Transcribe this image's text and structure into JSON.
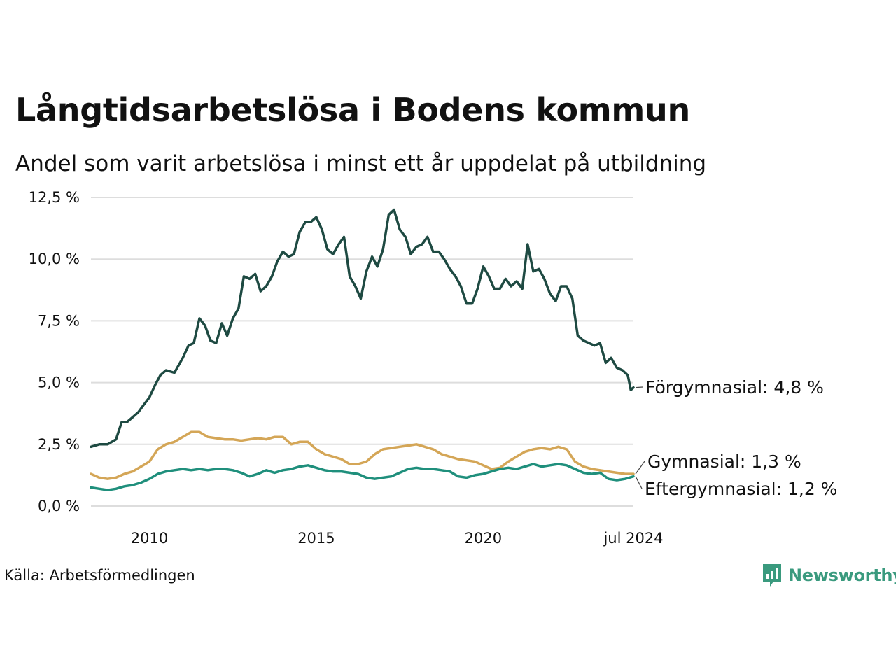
{
  "header": {
    "title": "Långtidsarbetslösa i Bodens kommun",
    "subtitle": "Andel som varit arbetslösa i minst ett år uppdelat på utbildning"
  },
  "footer": {
    "source": "Källa: Arbetsförmedlingen",
    "logo_text": "Newsworthy"
  },
  "colors": {
    "forgymnasial": "#1e4a42",
    "gymnasial": "#d4a657",
    "eftergymnasial": "#1f8f7c",
    "grid": "#dddddd",
    "logo": "#3a9a7e"
  },
  "chart_data": {
    "type": "line",
    "title": "Långtidsarbetslösa i Bodens kommun",
    "subtitle": "Andel som varit arbetslösa i minst ett år uppdelat på utbildning",
    "xlabel": "",
    "ylabel": "",
    "ylim": [
      0,
      12.5
    ],
    "xlim": [
      2008.25,
      2024.5
    ],
    "y_ticks": [
      0,
      2.5,
      5,
      7.5,
      10,
      12.5
    ],
    "y_tick_labels": [
      "0,0 %",
      "2,5 %",
      "5,0 %",
      "7,5 %",
      "10,0 %",
      "12,5 %"
    ],
    "x_ticks": [
      2010,
      2015,
      2020,
      2024.5
    ],
    "x_tick_labels": [
      "2010",
      "2015",
      "2020",
      "jul 2024"
    ],
    "grid": true,
    "series": [
      {
        "name": "Förgymnasial",
        "end_label": "Förgymnasial: 4,8 %",
        "color_key": "forgymnasial",
        "points": [
          [
            2008.25,
            2.4
          ],
          [
            2008.5,
            2.5
          ],
          [
            2008.75,
            2.5
          ],
          [
            2009,
            2.7
          ],
          [
            2009.17,
            3.4
          ],
          [
            2009.33,
            3.4
          ],
          [
            2009.5,
            3.6
          ],
          [
            2009.67,
            3.8
          ],
          [
            2009.83,
            4.1
          ],
          [
            2010,
            4.4
          ],
          [
            2010.17,
            4.9
          ],
          [
            2010.33,
            5.3
          ],
          [
            2010.5,
            5.5
          ],
          [
            2010.75,
            5.4
          ],
          [
            2011,
            6.0
          ],
          [
            2011.17,
            6.5
          ],
          [
            2011.33,
            6.6
          ],
          [
            2011.5,
            7.6
          ],
          [
            2011.67,
            7.3
          ],
          [
            2011.83,
            6.7
          ],
          [
            2012,
            6.6
          ],
          [
            2012.17,
            7.4
          ],
          [
            2012.33,
            6.9
          ],
          [
            2012.5,
            7.6
          ],
          [
            2012.67,
            8.0
          ],
          [
            2012.83,
            9.3
          ],
          [
            2013,
            9.2
          ],
          [
            2013.17,
            9.4
          ],
          [
            2013.33,
            8.7
          ],
          [
            2013.5,
            8.9
          ],
          [
            2013.67,
            9.3
          ],
          [
            2013.83,
            9.9
          ],
          [
            2014,
            10.3
          ],
          [
            2014.17,
            10.1
          ],
          [
            2014.33,
            10.2
          ],
          [
            2014.5,
            11.1
          ],
          [
            2014.67,
            11.5
          ],
          [
            2014.83,
            11.5
          ],
          [
            2015,
            11.7
          ],
          [
            2015.17,
            11.2
          ],
          [
            2015.33,
            10.4
          ],
          [
            2015.5,
            10.2
          ],
          [
            2015.67,
            10.6
          ],
          [
            2015.83,
            10.9
          ],
          [
            2016,
            9.3
          ],
          [
            2016.17,
            8.9
          ],
          [
            2016.33,
            8.4
          ],
          [
            2016.5,
            9.5
          ],
          [
            2016.67,
            10.1
          ],
          [
            2016.83,
            9.7
          ],
          [
            2017,
            10.4
          ],
          [
            2017.17,
            11.8
          ],
          [
            2017.33,
            12.0
          ],
          [
            2017.5,
            11.2
          ],
          [
            2017.67,
            10.9
          ],
          [
            2017.83,
            10.2
          ],
          [
            2018,
            10.5
          ],
          [
            2018.17,
            10.6
          ],
          [
            2018.33,
            10.9
          ],
          [
            2018.5,
            10.3
          ],
          [
            2018.67,
            10.3
          ],
          [
            2018.83,
            10.0
          ],
          [
            2019,
            9.6
          ],
          [
            2019.17,
            9.3
          ],
          [
            2019.33,
            8.9
          ],
          [
            2019.5,
            8.2
          ],
          [
            2019.67,
            8.2
          ],
          [
            2019.83,
            8.8
          ],
          [
            2020,
            9.7
          ],
          [
            2020.17,
            9.3
          ],
          [
            2020.33,
            8.8
          ],
          [
            2020.5,
            8.8
          ],
          [
            2020.67,
            9.2
          ],
          [
            2020.83,
            8.9
          ],
          [
            2021,
            9.1
          ],
          [
            2021.17,
            8.8
          ],
          [
            2021.33,
            10.6
          ],
          [
            2021.5,
            9.5
          ],
          [
            2021.67,
            9.6
          ],
          [
            2021.83,
            9.2
          ],
          [
            2022,
            8.6
          ],
          [
            2022.17,
            8.3
          ],
          [
            2022.33,
            8.9
          ],
          [
            2022.5,
            8.9
          ],
          [
            2022.67,
            8.4
          ],
          [
            2022.83,
            6.9
          ],
          [
            2023,
            6.7
          ],
          [
            2023.17,
            6.6
          ],
          [
            2023.33,
            6.5
          ],
          [
            2023.5,
            6.6
          ],
          [
            2023.67,
            5.8
          ],
          [
            2023.83,
            6.0
          ],
          [
            2024,
            5.6
          ],
          [
            2024.17,
            5.5
          ],
          [
            2024.33,
            5.3
          ],
          [
            2024.42,
            4.7
          ],
          [
            2024.5,
            4.8
          ]
        ]
      },
      {
        "name": "Gymnasial",
        "end_label": "Gymnasial: 1,3 %",
        "color_key": "gymnasial",
        "points": [
          [
            2008.25,
            1.3
          ],
          [
            2008.5,
            1.15
          ],
          [
            2008.75,
            1.1
          ],
          [
            2009,
            1.15
          ],
          [
            2009.25,
            1.3
          ],
          [
            2009.5,
            1.4
          ],
          [
            2009.75,
            1.6
          ],
          [
            2010,
            1.8
          ],
          [
            2010.25,
            2.3
          ],
          [
            2010.5,
            2.5
          ],
          [
            2010.75,
            2.6
          ],
          [
            2011,
            2.8
          ],
          [
            2011.25,
            3.0
          ],
          [
            2011.5,
            3.0
          ],
          [
            2011.75,
            2.8
          ],
          [
            2012,
            2.75
          ],
          [
            2012.25,
            2.7
          ],
          [
            2012.5,
            2.7
          ],
          [
            2012.75,
            2.65
          ],
          [
            2013,
            2.7
          ],
          [
            2013.25,
            2.75
          ],
          [
            2013.5,
            2.7
          ],
          [
            2013.75,
            2.8
          ],
          [
            2014,
            2.8
          ],
          [
            2014.25,
            2.5
          ],
          [
            2014.5,
            2.6
          ],
          [
            2014.75,
            2.6
          ],
          [
            2015,
            2.3
          ],
          [
            2015.25,
            2.1
          ],
          [
            2015.5,
            2.0
          ],
          [
            2015.75,
            1.9
          ],
          [
            2016,
            1.7
          ],
          [
            2016.25,
            1.7
          ],
          [
            2016.5,
            1.8
          ],
          [
            2016.75,
            2.1
          ],
          [
            2017,
            2.3
          ],
          [
            2017.25,
            2.35
          ],
          [
            2017.5,
            2.4
          ],
          [
            2017.75,
            2.45
          ],
          [
            2018,
            2.5
          ],
          [
            2018.25,
            2.4
          ],
          [
            2018.5,
            2.3
          ],
          [
            2018.75,
            2.1
          ],
          [
            2019,
            2.0
          ],
          [
            2019.25,
            1.9
          ],
          [
            2019.5,
            1.85
          ],
          [
            2019.75,
            1.8
          ],
          [
            2020,
            1.65
          ],
          [
            2020.25,
            1.5
          ],
          [
            2020.5,
            1.55
          ],
          [
            2020.75,
            1.8
          ],
          [
            2021,
            2.0
          ],
          [
            2021.25,
            2.2
          ],
          [
            2021.5,
            2.3
          ],
          [
            2021.75,
            2.35
          ],
          [
            2022,
            2.3
          ],
          [
            2022.25,
            2.4
          ],
          [
            2022.5,
            2.3
          ],
          [
            2022.75,
            1.8
          ],
          [
            2023,
            1.6
          ],
          [
            2023.25,
            1.5
          ],
          [
            2023.5,
            1.45
          ],
          [
            2023.75,
            1.4
          ],
          [
            2024,
            1.35
          ],
          [
            2024.25,
            1.3
          ],
          [
            2024.5,
            1.3
          ]
        ]
      },
      {
        "name": "Eftergymnasial",
        "end_label": "Eftergymnasial: 1,2 %",
        "color_key": "eftergymnasial",
        "points": [
          [
            2008.25,
            0.75
          ],
          [
            2008.5,
            0.7
          ],
          [
            2008.75,
            0.65
          ],
          [
            2009,
            0.7
          ],
          [
            2009.25,
            0.8
          ],
          [
            2009.5,
            0.85
          ],
          [
            2009.75,
            0.95
          ],
          [
            2010,
            1.1
          ],
          [
            2010.25,
            1.3
          ],
          [
            2010.5,
            1.4
          ],
          [
            2010.75,
            1.45
          ],
          [
            2011,
            1.5
          ],
          [
            2011.25,
            1.45
          ],
          [
            2011.5,
            1.5
          ],
          [
            2011.75,
            1.45
          ],
          [
            2012,
            1.5
          ],
          [
            2012.25,
            1.5
          ],
          [
            2012.5,
            1.45
          ],
          [
            2012.75,
            1.35
          ],
          [
            2013,
            1.2
          ],
          [
            2013.25,
            1.3
          ],
          [
            2013.5,
            1.45
          ],
          [
            2013.75,
            1.35
          ],
          [
            2014,
            1.45
          ],
          [
            2014.25,
            1.5
          ],
          [
            2014.5,
            1.6
          ],
          [
            2014.75,
            1.65
          ],
          [
            2015,
            1.55
          ],
          [
            2015.25,
            1.45
          ],
          [
            2015.5,
            1.4
          ],
          [
            2015.75,
            1.4
          ],
          [
            2016,
            1.35
          ],
          [
            2016.25,
            1.3
          ],
          [
            2016.5,
            1.15
          ],
          [
            2016.75,
            1.1
          ],
          [
            2017,
            1.15
          ],
          [
            2017.25,
            1.2
          ],
          [
            2017.5,
            1.35
          ],
          [
            2017.75,
            1.5
          ],
          [
            2018,
            1.55
          ],
          [
            2018.25,
            1.5
          ],
          [
            2018.5,
            1.5
          ],
          [
            2018.75,
            1.45
          ],
          [
            2019,
            1.4
          ],
          [
            2019.25,
            1.2
          ],
          [
            2019.5,
            1.15
          ],
          [
            2019.75,
            1.25
          ],
          [
            2020,
            1.3
          ],
          [
            2020.25,
            1.4
          ],
          [
            2020.5,
            1.5
          ],
          [
            2020.75,
            1.55
          ],
          [
            2021,
            1.5
          ],
          [
            2021.25,
            1.6
          ],
          [
            2021.5,
            1.7
          ],
          [
            2021.75,
            1.6
          ],
          [
            2022,
            1.65
          ],
          [
            2022.25,
            1.7
          ],
          [
            2022.5,
            1.65
          ],
          [
            2022.75,
            1.5
          ],
          [
            2023,
            1.35
          ],
          [
            2023.25,
            1.3
          ],
          [
            2023.5,
            1.35
          ],
          [
            2023.75,
            1.1
          ],
          [
            2024,
            1.05
          ],
          [
            2024.25,
            1.1
          ],
          [
            2024.5,
            1.2
          ]
        ]
      }
    ]
  }
}
